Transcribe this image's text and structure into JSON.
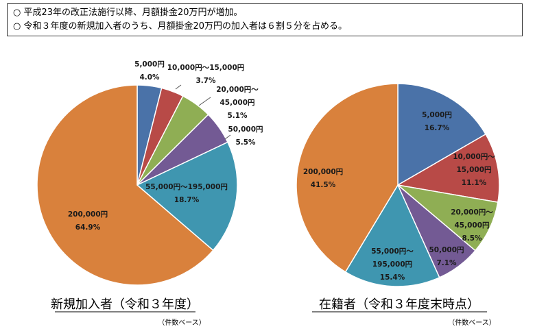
{
  "notes": [
    "○ 平成23年の改正法施行以降、月額掛金20万円が増加。",
    "○ 令和３年度の新規加入者のうち、月額掛金20万円の加入者は６割５分を占める。"
  ],
  "chart_data": [
    {
      "type": "pie",
      "title": "新規加入者（令和３年度）",
      "subtitle": "（件数ベース）",
      "slices": [
        {
          "label": "5,000円",
          "value": 4.0,
          "pct": "4.0%",
          "color": "#4a72a8"
        },
        {
          "label": "10,000円～15,000円",
          "value": 3.7,
          "pct": "3.7%",
          "color": "#b84a47"
        },
        {
          "label": "20,000円～ 45,000円",
          "value": 5.1,
          "pct": "5.1%",
          "color": "#8fae54"
        },
        {
          "label": "50,000円",
          "value": 5.5,
          "pct": "5.5%",
          "color": "#735a94"
        },
        {
          "label": "55,000円～195,000円",
          "value": 18.7,
          "pct": "18.7%",
          "color": "#3f96b0"
        },
        {
          "label": "200,000円",
          "value": 64.9,
          "pct": "64.9%",
          "color": "#d9813c"
        }
      ]
    },
    {
      "type": "pie",
      "title": "在籍者（令和３年度末時点）",
      "subtitle": "（件数ベース）",
      "slices": [
        {
          "label": "5,000円",
          "value": 16.7,
          "pct": "16.7%",
          "color": "#4a72a8"
        },
        {
          "label": "10,000円～ 15,000円",
          "value": 11.1,
          "pct": "11.1%",
          "color": "#b84a47"
        },
        {
          "label": "20,000円～ 45,000円",
          "value": 8.5,
          "pct": "8.5%",
          "color": "#8fae54"
        },
        {
          "label": "50,000円",
          "value": 7.1,
          "pct": "7.1%",
          "color": "#735a94"
        },
        {
          "label": "55,000円～ 195,000円",
          "value": 15.4,
          "pct": "15.4%",
          "color": "#3f96b0"
        },
        {
          "label": "200,000円",
          "value": 41.5,
          "pct": "41.5%",
          "color": "#d9813c"
        }
      ]
    }
  ]
}
